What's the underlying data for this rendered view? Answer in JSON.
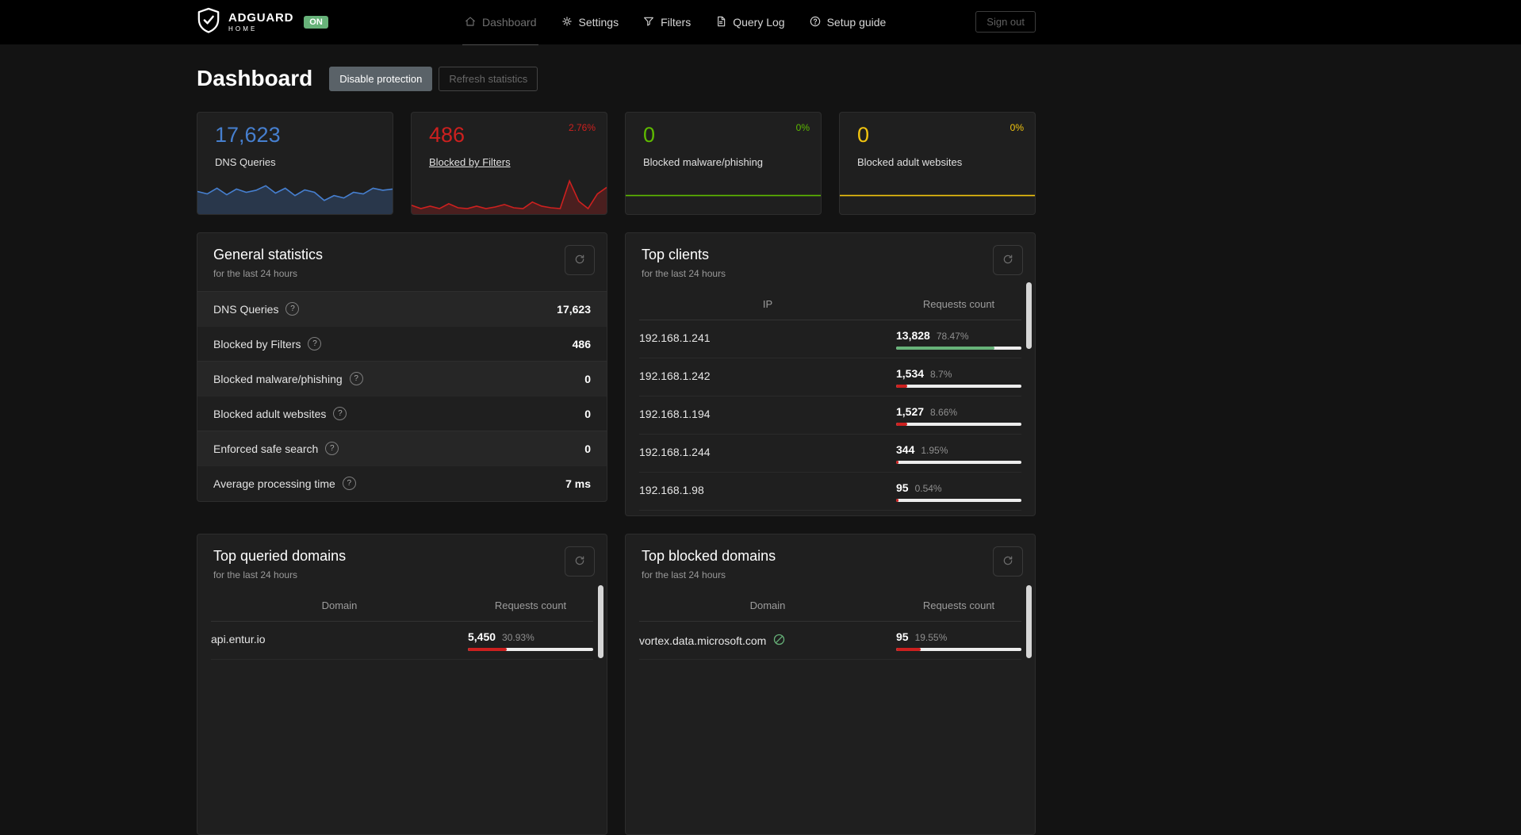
{
  "navbar": {
    "brand": {
      "title": "ADGUARD",
      "subtitle": "HOME",
      "status_badge": "ON"
    },
    "items": [
      {
        "label": "Dashboard"
      },
      {
        "label": "Settings"
      },
      {
        "label": "Filters"
      },
      {
        "label": "Query Log"
      },
      {
        "label": "Setup guide"
      }
    ],
    "sign_out": "Sign out"
  },
  "page": {
    "title": "Dashboard",
    "buttons": {
      "disable_protection": "Disable protection",
      "refresh_statistics": "Refresh statistics"
    }
  },
  "stat_cards": [
    {
      "value": "17,623",
      "label": "DNS Queries",
      "color": "#467fcf",
      "area": true,
      "spark": [
        0.52,
        0.46,
        0.6,
        0.44,
        0.58,
        0.5,
        0.55,
        0.66,
        0.48,
        0.6,
        0.42,
        0.56,
        0.5,
        0.3,
        0.42,
        0.36,
        0.5,
        0.46,
        0.6,
        0.55,
        0.58
      ]
    },
    {
      "value": "486",
      "label": "Blocked by Filters",
      "percent": "2.76%",
      "color": "#cd201f",
      "area": true,
      "spark": [
        0.18,
        0.1,
        0.16,
        0.1,
        0.22,
        0.12,
        0.1,
        0.16,
        0.1,
        0.14,
        0.2,
        0.12,
        0.1,
        0.26,
        0.16,
        0.12,
        0.1,
        0.78,
        0.28,
        0.1,
        0.46,
        0.62
      ]
    },
    {
      "value": "0",
      "label": "Blocked malware/phishing",
      "percent": "0%",
      "color": "#5eba00",
      "area": false,
      "spark": [
        0.42,
        0.42
      ]
    },
    {
      "value": "0",
      "label": "Blocked adult websites",
      "percent": "0%",
      "color": "#f1c40f",
      "area": false,
      "spark": [
        0.42,
        0.42
      ]
    }
  ],
  "general_statistics": {
    "title": "General statistics",
    "subtitle": "for the last 24 hours",
    "rows": [
      {
        "label": "DNS Queries",
        "value": "17,623"
      },
      {
        "label": "Blocked by Filters",
        "value": "486"
      },
      {
        "label": "Blocked malware/phishing",
        "value": "0"
      },
      {
        "label": "Blocked adult websites",
        "value": "0"
      },
      {
        "label": "Enforced safe search",
        "value": "0"
      },
      {
        "label": "Average processing time",
        "value": "7 ms"
      }
    ]
  },
  "top_clients": {
    "title": "Top clients",
    "subtitle": "for the last 24 hours",
    "columns": {
      "main": "IP",
      "count": "Requests count"
    },
    "rows": [
      {
        "ip": "192.168.1.241",
        "count": "13,828",
        "percent": "78.47%",
        "bar": 78.47,
        "bar_color": "#67b279"
      },
      {
        "ip": "192.168.1.242",
        "count": "1,534",
        "percent": "8.7%",
        "bar": 8.7,
        "bar_color": "#cd201f"
      },
      {
        "ip": "192.168.1.194",
        "count": "1,527",
        "percent": "8.66%",
        "bar": 8.66,
        "bar_color": "#cd201f"
      },
      {
        "ip": "192.168.1.244",
        "count": "344",
        "percent": "1.95%",
        "bar": 1.95,
        "bar_color": "#cd201f"
      },
      {
        "ip": "192.168.1.98",
        "count": "95",
        "percent": "0.54%",
        "bar": 0.54,
        "bar_color": "#cd201f"
      }
    ]
  },
  "top_queried_domains": {
    "title": "Top queried domains",
    "subtitle": "for the last 24 hours",
    "columns": {
      "main": "Domain",
      "count": "Requests count"
    },
    "rows": [
      {
        "domain": "api.entur.io",
        "count": "5,450",
        "percent": "30.93%",
        "bar": 30.93,
        "bar_color": "#cd201f"
      }
    ]
  },
  "top_blocked_domains": {
    "title": "Top blocked domains",
    "subtitle": "for the last 24 hours",
    "columns": {
      "main": "Domain",
      "count": "Requests count"
    },
    "rows": [
      {
        "domain": "vortex.data.microsoft.com",
        "count": "95",
        "percent": "19.55%",
        "bar": 19.55,
        "bar_color": "#cd201f"
      }
    ]
  },
  "colors": {
    "accent_green": "#67b279",
    "accent_red": "#cd201f",
    "accent_blue": "#467fcf",
    "accent_yellow": "#f1c40f"
  }
}
